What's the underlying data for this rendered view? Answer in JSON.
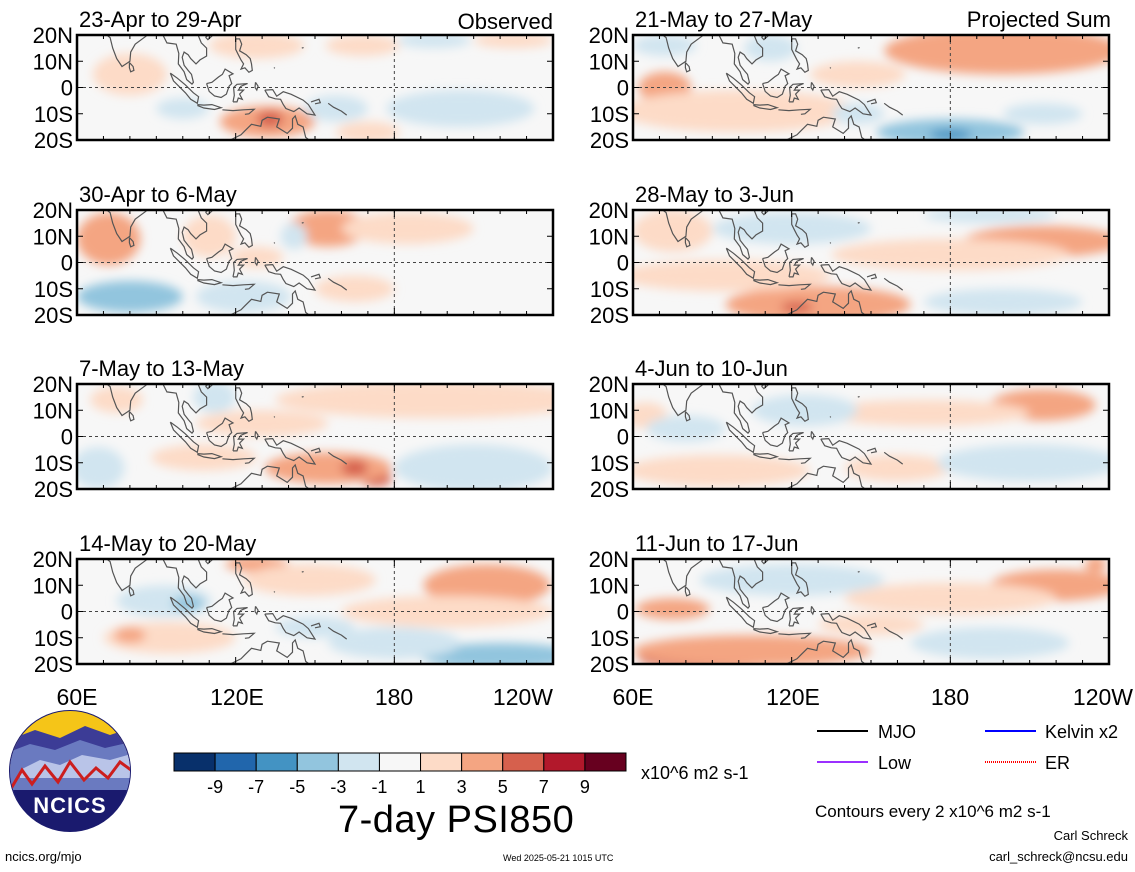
{
  "chart_data": {
    "type": "heatmap",
    "title": "7-day PSI850",
    "units": "x10^6 m2 s-1",
    "contour_note": "Contours every 2 x10^6 m2 s-1",
    "x_ticks": [
      "60E",
      "120E",
      "180",
      "120W"
    ],
    "y_ticks": [
      "20N",
      "10N",
      "0",
      "10S",
      "20S"
    ],
    "colorbar": {
      "tick_labels": [
        "-9",
        "-7",
        "-5",
        "-3",
        "-1",
        "1",
        "3",
        "5",
        "7",
        "9"
      ],
      "colors": [
        "#08306b",
        "#2166ac",
        "#4393c3",
        "#92c5de",
        "#d1e5f0",
        "#f7f7f7",
        "#fddbc7",
        "#f4a582",
        "#d6604d",
        "#b2182b",
        "#67001f"
      ]
    },
    "legend": [
      {
        "label": "MJO",
        "color": "#000000"
      },
      {
        "label": "Kelvin x2",
        "color": "#0000ff"
      },
      {
        "label": "Low",
        "color": "#9b30ff"
      },
      {
        "label": "ER",
        "color": "#ff0000"
      }
    ],
    "column_labels": {
      "left": "Observed",
      "right": "Projected Sum"
    },
    "panels": [
      {
        "label": "23-Apr to 29-Apr",
        "blobs": [
          {
            "lon": 132,
            "lat": -13,
            "rx": 18,
            "ry": 6,
            "v": 4
          },
          {
            "lon": 133,
            "lat": -12,
            "rx": 5,
            "ry": 3,
            "v": 6
          },
          {
            "lon": 80,
            "lat": 5,
            "rx": 14,
            "ry": 8,
            "v": 2
          },
          {
            "lon": 128,
            "lat": 16,
            "rx": 18,
            "ry": 5,
            "v": 2
          },
          {
            "lon": 170,
            "lat": -17,
            "rx": 12,
            "ry": 4,
            "v": 2
          },
          {
            "lon": 168,
            "lat": 16,
            "rx": 14,
            "ry": 4,
            "v": 2
          },
          {
            "lon": 225,
            "lat": 18,
            "rx": 15,
            "ry": 3,
            "v": 2
          },
          {
            "lon": 100,
            "lat": -8,
            "rx": 10,
            "ry": 4,
            "v": -2
          },
          {
            "lon": 158,
            "lat": -8,
            "rx": 12,
            "ry": 5,
            "v": -2
          },
          {
            "lon": 205,
            "lat": -8,
            "rx": 28,
            "ry": 7,
            "v": -2
          },
          {
            "lon": 195,
            "lat": 18,
            "rx": 14,
            "ry": 3,
            "v": -2
          }
        ]
      },
      {
        "label": "30-Apr to 6-May",
        "blobs": [
          {
            "lon": 72,
            "lat": 9,
            "rx": 12,
            "ry": 10,
            "v": 4
          },
          {
            "lon": 155,
            "lat": 13,
            "rx": 15,
            "ry": 7,
            "v": 4
          },
          {
            "lon": 110,
            "lat": 10,
            "rx": 10,
            "ry": 8,
            "v": 2
          },
          {
            "lon": 185,
            "lat": 13,
            "rx": 25,
            "ry": 6,
            "v": 2
          },
          {
            "lon": 165,
            "lat": -10,
            "rx": 15,
            "ry": 5,
            "v": 2
          },
          {
            "lon": 128,
            "lat": 2,
            "rx": 10,
            "ry": 4,
            "v": 2
          },
          {
            "lon": 80,
            "lat": -13,
            "rx": 20,
            "ry": 6,
            "v": -4
          },
          {
            "lon": 123,
            "lat": -13,
            "rx": 18,
            "ry": 6,
            "v": -2
          },
          {
            "lon": 142,
            "lat": 10,
            "rx": 5,
            "ry": 5,
            "v": -2
          }
        ]
      },
      {
        "label": "7-May to 13-May",
        "blobs": [
          {
            "lon": 173,
            "lat": -16,
            "rx": 6,
            "ry": 3,
            "v": 6
          },
          {
            "lon": 155,
            "lat": -12,
            "rx": 24,
            "ry": 6,
            "v": 4
          },
          {
            "lon": 108,
            "lat": -8,
            "rx": 20,
            "ry": 5,
            "v": 2
          },
          {
            "lon": 165,
            "lat": -12,
            "rx": 5,
            "ry": 3,
            "v": 6
          },
          {
            "lon": 130,
            "lat": 5,
            "rx": 25,
            "ry": 5,
            "v": 2
          },
          {
            "lon": 195,
            "lat": 14,
            "rx": 60,
            "ry": 7,
            "v": 2
          },
          {
            "lon": 75,
            "lat": 14,
            "rx": 10,
            "ry": 5,
            "v": 2
          },
          {
            "lon": 210,
            "lat": -12,
            "rx": 30,
            "ry": 9,
            "v": -2
          },
          {
            "lon": 68,
            "lat": -12,
            "rx": 10,
            "ry": 8,
            "v": -2
          },
          {
            "lon": 112,
            "lat": 15,
            "rx": 8,
            "ry": 6,
            "v": -2
          }
        ]
      },
      {
        "label": "14-May to 20-May",
        "blobs": [
          {
            "lon": 215,
            "lat": 10,
            "rx": 24,
            "ry": 8,
            "v": 4
          },
          {
            "lon": 128,
            "lat": 18,
            "rx": 12,
            "ry": 3,
            "v": 4
          },
          {
            "lon": 148,
            "lat": 12,
            "rx": 25,
            "ry": 6,
            "v": 2
          },
          {
            "lon": 95,
            "lat": -10,
            "rx": 25,
            "ry": 6,
            "v": 2
          },
          {
            "lon": 80,
            "lat": -9,
            "rx": 6,
            "ry": 3,
            "v": 4
          },
          {
            "lon": 200,
            "lat": 0,
            "rx": 40,
            "ry": 6,
            "v": 2
          },
          {
            "lon": 93,
            "lat": 4,
            "rx": 18,
            "ry": 6,
            "v": -2
          },
          {
            "lon": 102,
            "lat": 3,
            "rx": 6,
            "ry": 3,
            "v": -4
          },
          {
            "lon": 220,
            "lat": -17,
            "rx": 30,
            "ry": 5,
            "v": -4
          },
          {
            "lon": 180,
            "lat": -12,
            "rx": 25,
            "ry": 6,
            "v": -2
          },
          {
            "lon": 150,
            "lat": -6,
            "rx": 15,
            "ry": 4,
            "v": -2
          }
        ]
      },
      {
        "label": "21-May to 27-May",
        "blobs": [
          {
            "lon": 200,
            "lat": 14,
            "rx": 45,
            "ry": 9,
            "v": 4
          },
          {
            "lon": 72,
            "lat": 0,
            "rx": 10,
            "ry": 6,
            "v": 4
          },
          {
            "lon": 100,
            "lat": -9,
            "rx": 45,
            "ry": 8,
            "v": 2
          },
          {
            "lon": 145,
            "lat": 5,
            "rx": 18,
            "ry": 5,
            "v": 2
          },
          {
            "lon": 180,
            "lat": -17,
            "rx": 28,
            "ry": 5,
            "v": -4
          },
          {
            "lon": 180,
            "lat": -18,
            "rx": 8,
            "ry": 2,
            "v": -6
          },
          {
            "lon": 215,
            "lat": -10,
            "rx": 15,
            "ry": 4,
            "v": -2
          },
          {
            "lon": 72,
            "lat": 16,
            "rx": 12,
            "ry": 4,
            "v": -2
          },
          {
            "lon": 112,
            "lat": 15,
            "rx": 10,
            "ry": 5,
            "v": -2
          },
          {
            "lon": 145,
            "lat": -10,
            "rx": 10,
            "ry": 4,
            "v": -2
          }
        ]
      },
      {
        "label": "28-May to 3-Jun",
        "blobs": [
          {
            "lon": 130,
            "lat": -16,
            "rx": 35,
            "ry": 7,
            "v": 4
          },
          {
            "lon": 215,
            "lat": 8,
            "rx": 30,
            "ry": 6,
            "v": 4
          },
          {
            "lon": 95,
            "lat": -5,
            "rx": 40,
            "ry": 6,
            "v": 2
          },
          {
            "lon": 180,
            "lat": 3,
            "rx": 45,
            "ry": 6,
            "v": 2
          },
          {
            "lon": 75,
            "lat": 12,
            "rx": 15,
            "ry": 8,
            "v": 2
          },
          {
            "lon": 122,
            "lat": -17,
            "rx": 6,
            "ry": 2,
            "v": 6
          },
          {
            "lon": 120,
            "lat": 13,
            "rx": 30,
            "ry": 6,
            "v": -2
          },
          {
            "lon": 200,
            "lat": -15,
            "rx": 30,
            "ry": 5,
            "v": -2
          },
          {
            "lon": 195,
            "lat": 18,
            "rx": 25,
            "ry": 3,
            "v": -2
          }
        ]
      },
      {
        "label": "4-Jun to 10-Jun",
        "blobs": [
          {
            "lon": 215,
            "lat": 12,
            "rx": 20,
            "ry": 6,
            "v": 4
          },
          {
            "lon": 92,
            "lat": -13,
            "rx": 35,
            "ry": 6,
            "v": 2
          },
          {
            "lon": 170,
            "lat": 9,
            "rx": 40,
            "ry": 5,
            "v": 2
          },
          {
            "lon": 160,
            "lat": -12,
            "rx": 20,
            "ry": 5,
            "v": 2
          },
          {
            "lon": 65,
            "lat": 8,
            "rx": 8,
            "ry": 5,
            "v": 2
          },
          {
            "lon": 125,
            "lat": 10,
            "rx": 20,
            "ry": 6,
            "v": -2
          },
          {
            "lon": 210,
            "lat": -10,
            "rx": 35,
            "ry": 7,
            "v": -2
          },
          {
            "lon": 80,
            "lat": 3,
            "rx": 15,
            "ry": 5,
            "v": -2
          }
        ]
      },
      {
        "label": "11-Jun to 17-Jun",
        "blobs": [
          {
            "lon": 90,
            "lat": -18,
            "rx": 28,
            "ry": 4,
            "v": 6
          },
          {
            "lon": 105,
            "lat": -15,
            "rx": 45,
            "ry": 6,
            "v": 4
          },
          {
            "lon": 75,
            "lat": 1,
            "rx": 14,
            "ry": 4,
            "v": 4
          },
          {
            "lon": 220,
            "lat": 10,
            "rx": 25,
            "ry": 6,
            "v": 4
          },
          {
            "lon": 180,
            "lat": 5,
            "rx": 40,
            "ry": 6,
            "v": 2
          },
          {
            "lon": 150,
            "lat": -5,
            "rx": 20,
            "ry": 4,
            "v": 2
          },
          {
            "lon": 120,
            "lat": 12,
            "rx": 35,
            "ry": 6,
            "v": -2
          },
          {
            "lon": 195,
            "lat": -12,
            "rx": 30,
            "ry": 6,
            "v": -2
          },
          {
            "lon": 235,
            "lat": 18,
            "rx": 4,
            "ry": 3,
            "v": 4
          }
        ]
      }
    ]
  },
  "footer": {
    "url": "ncics.org/mjo",
    "timestamp": "Wed 2025-05-21 1015 UTC",
    "author": "Carl Schreck",
    "email": "carl_schreck@ncsu.edu"
  },
  "logo": {
    "text": "NCICS"
  }
}
